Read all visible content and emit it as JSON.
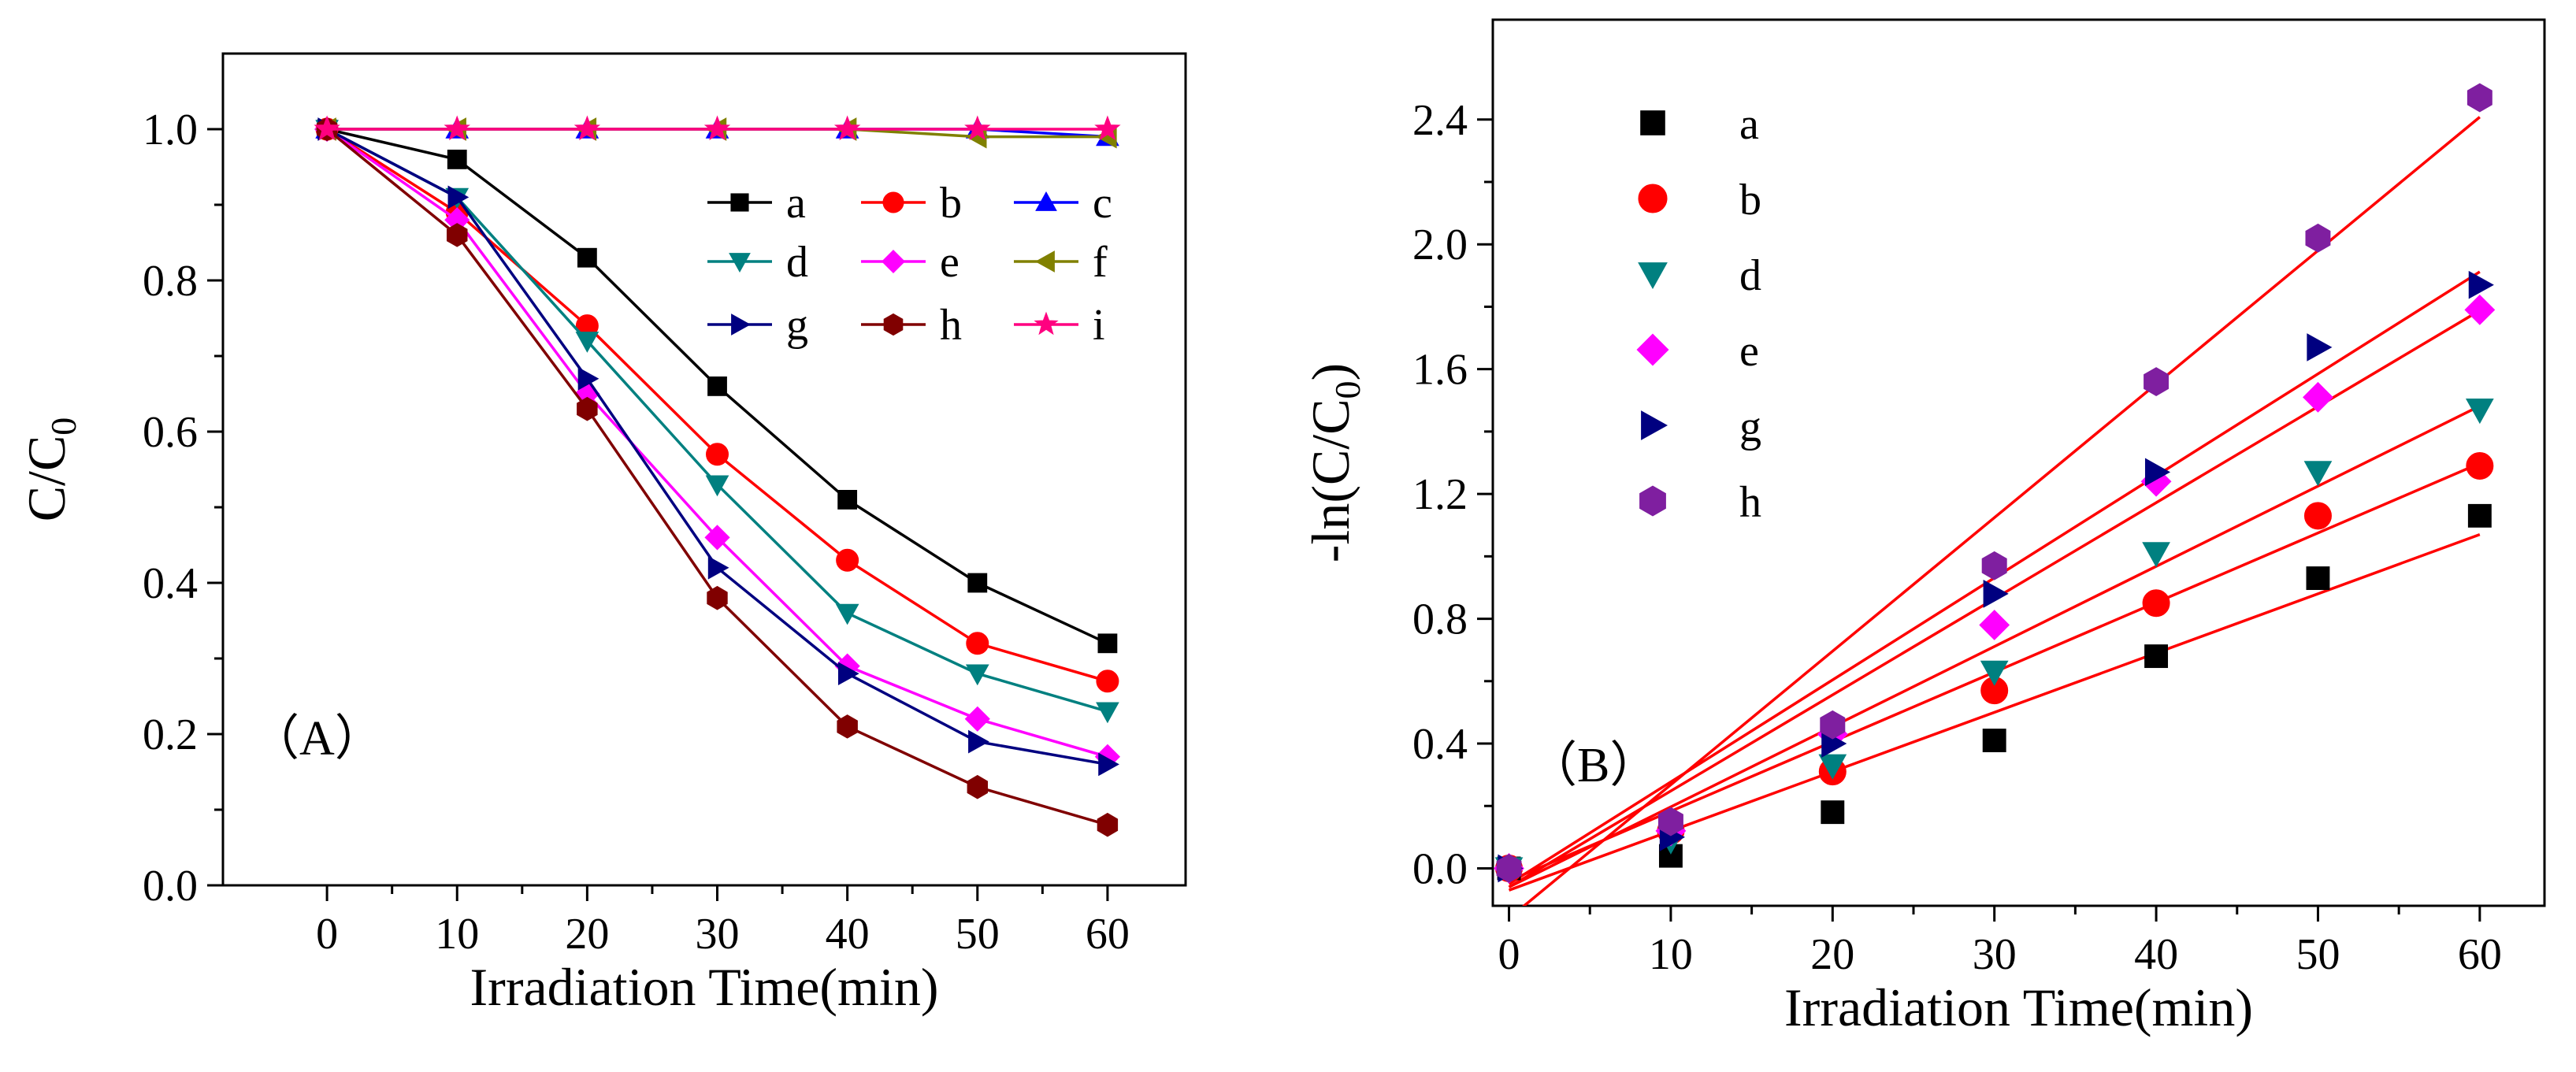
{
  "chart_data": [
    {
      "type": "line",
      "panel_label": "（A）",
      "xlabel": "Irradiation Time(min)",
      "ylabel": "C/C",
      "ylabel_sub": "0",
      "xlim": [
        -8,
        66
      ],
      "ylim": [
        0,
        1.1
      ],
      "xticks": [
        0,
        10,
        20,
        30,
        40,
        50,
        60
      ],
      "xtick_labels": [
        "0",
        "10",
        "20",
        "30",
        "40",
        "50",
        "60"
      ],
      "yticks": [
        0.0,
        0.2,
        0.4,
        0.6,
        0.8,
        1.0
      ],
      "ytick_labels": [
        "0.0",
        "0.2",
        "0.4",
        "0.6",
        "0.8",
        "1.0"
      ],
      "legend_position": "top-right",
      "x": [
        0,
        10,
        20,
        30,
        40,
        50,
        60
      ],
      "series": [
        {
          "name": "a",
          "color": "#000000",
          "marker": "square",
          "values": [
            1.0,
            0.96,
            0.83,
            0.66,
            0.51,
            0.4,
            0.32
          ]
        },
        {
          "name": "b",
          "color": "#ff0000",
          "marker": "circle",
          "values": [
            1.0,
            0.89,
            0.74,
            0.57,
            0.43,
            0.32,
            0.27
          ]
        },
        {
          "name": "c",
          "color": "#0000ff",
          "marker": "triangle-up",
          "values": [
            1.0,
            1.0,
            1.0,
            1.0,
            1.0,
            1.0,
            0.99
          ]
        },
        {
          "name": "d",
          "color": "#008080",
          "marker": "triangle-down",
          "values": [
            1.0,
            0.91,
            0.72,
            0.53,
            0.36,
            0.28,
            0.23
          ]
        },
        {
          "name": "e",
          "color": "#ff00ff",
          "marker": "diamond",
          "values": [
            1.0,
            0.88,
            0.65,
            0.46,
            0.29,
            0.22,
            0.17
          ]
        },
        {
          "name": "f",
          "color": "#808000",
          "marker": "triangle-left",
          "values": [
            1.0,
            1.0,
            1.0,
            1.0,
            1.0,
            0.99,
            0.99
          ]
        },
        {
          "name": "g",
          "color": "#000080",
          "marker": "triangle-right",
          "values": [
            1.0,
            0.91,
            0.67,
            0.42,
            0.28,
            0.19,
            0.16
          ]
        },
        {
          "name": "h",
          "color": "#800000",
          "marker": "hexagon",
          "values": [
            1.0,
            0.86,
            0.63,
            0.38,
            0.21,
            0.13,
            0.08
          ]
        },
        {
          "name": "i",
          "color": "#ff0080",
          "marker": "star",
          "values": [
            1.0,
            1.0,
            1.0,
            1.0,
            1.0,
            1.0,
            1.0
          ]
        }
      ]
    },
    {
      "type": "scatter",
      "panel_label": "（B）",
      "xlabel": "Irradiation Time(min)",
      "ylabel": "-ln(C/C",
      "ylabel_sub": "0",
      "ylabel_tail": ")",
      "xlim": [
        -1,
        64
      ],
      "ylim": [
        -0.12,
        2.72
      ],
      "xticks": [
        0,
        10,
        20,
        30,
        40,
        50,
        60
      ],
      "xtick_labels": [
        "0",
        "10",
        "20",
        "30",
        "40",
        "50",
        "60"
      ],
      "yticks": [
        0.0,
        0.4,
        0.8,
        1.2,
        1.6,
        2.0,
        2.4
      ],
      "ytick_labels": [
        "0.0",
        "0.4",
        "0.8",
        "1.2",
        "1.6",
        "2.0",
        "2.4"
      ],
      "legend_position": "top-left",
      "fit_line_color": "#ff0000",
      "x": [
        0,
        10,
        20,
        30,
        40,
        50,
        60
      ],
      "series": [
        {
          "name": "a",
          "color": "#000000",
          "marker": "square",
          "values": [
            0,
            0.04,
            0.18,
            0.41,
            0.68,
            0.93,
            1.13
          ],
          "fit": {
            "slope": 0.019,
            "intercept": -0.07
          }
        },
        {
          "name": "b",
          "color": "#ff0000",
          "marker": "circle",
          "values": [
            0,
            0.12,
            0.31,
            0.57,
            0.85,
            1.13,
            1.29
          ],
          "fit": {
            "slope": 0.0223,
            "intercept": -0.04
          }
        },
        {
          "name": "d",
          "color": "#008080",
          "marker": "triangle-down",
          "values": [
            0,
            0.09,
            0.33,
            0.63,
            1.01,
            1.27,
            1.47
          ],
          "fit": {
            "slope": 0.0257,
            "intercept": -0.06
          }
        },
        {
          "name": "e",
          "color": "#ff00ff",
          "marker": "diamond",
          "values": [
            0,
            0.12,
            0.43,
            0.78,
            1.24,
            1.51,
            1.79
          ],
          "fit": {
            "slope": 0.0308,
            "intercept": -0.06
          }
        },
        {
          "name": "g",
          "color": "#000080",
          "marker": "triangle-right",
          "values": [
            0,
            0.1,
            0.4,
            0.88,
            1.27,
            1.67,
            1.87
          ],
          "fit": {
            "slope": 0.0327,
            "intercept": -0.05
          }
        },
        {
          "name": "h",
          "color": "#7f1fa0",
          "marker": "hexagon",
          "values": [
            0,
            0.15,
            0.46,
            0.97,
            1.56,
            2.02,
            2.47
          ],
          "fit": {
            "slope": 0.0428,
            "intercept": -0.16
          }
        }
      ]
    }
  ]
}
